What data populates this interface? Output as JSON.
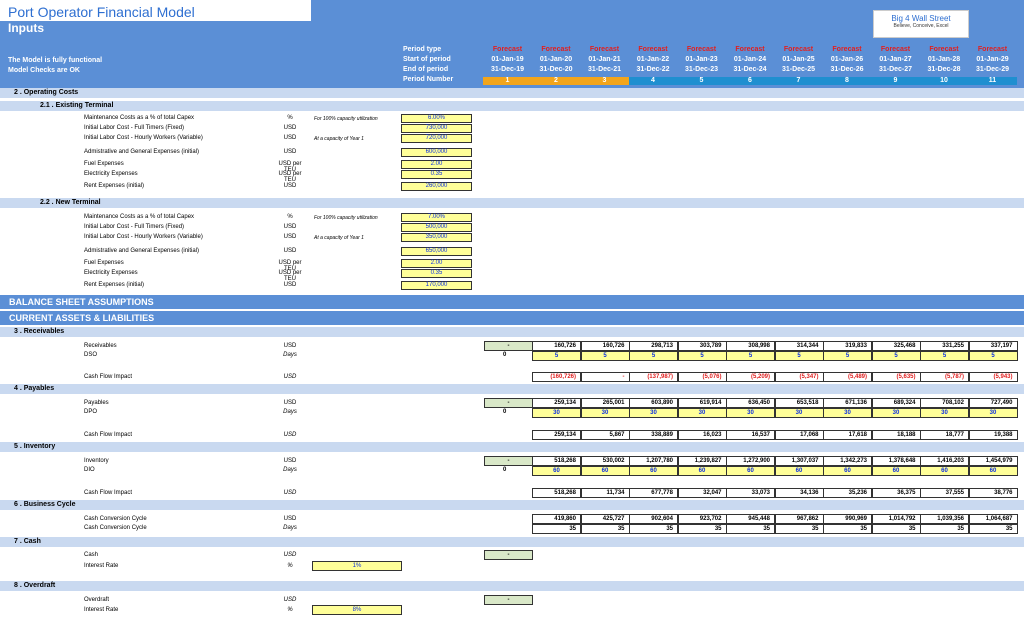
{
  "title": "Port Operator Financial Model",
  "subtitle": "Inputs",
  "logo": {
    "line1": "Big 4 Wall Street",
    "line2": "Believe, Conceive, Excel"
  },
  "status": [
    "The Model is fully functional",
    "Model Checks are OK"
  ],
  "period_labels": [
    "Period type",
    "Start of period",
    "End of period",
    "Period Number"
  ],
  "periods": [
    {
      "type": "Forecast",
      "start": "01-Jan-19",
      "end": "31-Dec-19",
      "num": "1"
    },
    {
      "type": "Forecast",
      "start": "01-Jan-20",
      "end": "31-Dec-20",
      "num": "2"
    },
    {
      "type": "Forecast",
      "start": "01-Jan-21",
      "end": "31-Dec-21",
      "num": "3"
    },
    {
      "type": "Forecast",
      "start": "01-Jan-22",
      "end": "31-Dec-22",
      "num": "4"
    },
    {
      "type": "Forecast",
      "start": "01-Jan-23",
      "end": "31-Dec-23",
      "num": "5"
    },
    {
      "type": "Forecast",
      "start": "01-Jan-24",
      "end": "31-Dec-24",
      "num": "6"
    },
    {
      "type": "Forecast",
      "start": "01-Jan-25",
      "end": "31-Dec-25",
      "num": "7"
    },
    {
      "type": "Forecast",
      "start": "01-Jan-26",
      "end": "31-Dec-26",
      "num": "8"
    },
    {
      "type": "Forecast",
      "start": "01-Jan-27",
      "end": "31-Dec-27",
      "num": "9"
    },
    {
      "type": "Forecast",
      "start": "01-Jan-28",
      "end": "31-Dec-28",
      "num": "10"
    },
    {
      "type": "Forecast",
      "start": "01-Jan-29",
      "end": "31-Dec-29",
      "num": "11"
    }
  ],
  "sec_operating": "2 . Operating Costs",
  "sub_existing": "2.1 . Existing Terminal",
  "sub_new": "2.2 . New Terminal",
  "cost_labels": [
    "Maintenance Costs as a % of total Capex",
    "Initial Labor Cost - Full Timers (Fixed)",
    "Initial Labor Cost - Hourly Workers (Variable)",
    "Admistrative and General Expenses (initial)",
    "Fuel Expenses",
    "Electricity Expenses",
    "Rent Expenses (initial)"
  ],
  "cost_units": [
    "%",
    "USD",
    "USD",
    "USD",
    "USD per TEU",
    "USD per TEU",
    "USD"
  ],
  "note_capacity": "For 100% capacity utilization",
  "note_year1": "At a capacity of Year 1",
  "existing_values": [
    "6.00%",
    "730,000",
    "720,000",
    "600,000",
    "2.00",
    "0.35",
    "260,000"
  ],
  "new_values": [
    "7.00%",
    "500,000",
    "350,000",
    "650,000",
    "2.00",
    "0.35",
    "170,000"
  ],
  "band_balance": "BALANCE SHEET ASSUMPTIONS",
  "band_current": "CURRENT ASSETS & LIABILITIES",
  "sec_receivables": "3 . Receivables",
  "sec_payables": "4 . Payables",
  "sec_inventory": "5 . Inventory",
  "sec_business": "6 . Business Cycle",
  "sec_cash": "7 . Cash",
  "sec_overdraft": "8 . Overdraft",
  "lbl": {
    "receivables": "Receivables",
    "dso": "DSO",
    "cfi": "Cash Flow Impact",
    "payables": "Payables",
    "dpo": "DPO",
    "inventory": "Inventory",
    "dio": "DIO",
    "ccc": "Cash Conversion Cycle",
    "cash": "Cash",
    "interest": "Interest Rate",
    "overdraft": "Overdraft",
    "usd": "USD",
    "days": "Days",
    "pct": "%"
  },
  "dash": "-",
  "zero": "0",
  "receivables": [
    "160,726",
    "160,726",
    "298,713",
    "303,789",
    "308,998",
    "314,344",
    "319,833",
    "325,468",
    "331,255",
    "337,197"
  ],
  "dso": [
    "5",
    "5",
    "5",
    "5",
    "5",
    "5",
    "5",
    "5",
    "5",
    "5"
  ],
  "rec_cfi": [
    "(160,726)",
    "-",
    "(137,987)",
    "(5,076)",
    "(5,209)",
    "(5,347)",
    "(5,489)",
    "(5,635)",
    "(5,787)",
    "(5,943)"
  ],
  "payables": [
    "259,134",
    "265,001",
    "603,890",
    "619,914",
    "636,450",
    "653,518",
    "671,136",
    "689,324",
    "708,102",
    "727,490"
  ],
  "dpo": [
    "30",
    "30",
    "30",
    "30",
    "30",
    "30",
    "30",
    "30",
    "30",
    "30"
  ],
  "pay_cfi": [
    "259,134",
    "5,867",
    "338,889",
    "16,023",
    "16,537",
    "17,068",
    "17,618",
    "18,188",
    "18,777",
    "19,388"
  ],
  "inventory": [
    "518,268",
    "530,002",
    "1,207,780",
    "1,239,827",
    "1,272,900",
    "1,307,037",
    "1,342,273",
    "1,378,648",
    "1,416,203",
    "1,454,979"
  ],
  "dio": [
    "60",
    "60",
    "60",
    "60",
    "60",
    "60",
    "60",
    "60",
    "60",
    "60"
  ],
  "inv_cfi": [
    "518,268",
    "11,734",
    "677,778",
    "32,047",
    "33,073",
    "34,136",
    "35,236",
    "36,375",
    "37,555",
    "38,776"
  ],
  "ccc_usd": [
    "419,860",
    "425,727",
    "902,604",
    "923,702",
    "945,448",
    "967,862",
    "990,969",
    "1,014,792",
    "1,039,356",
    "1,064,687"
  ],
  "ccc_days": [
    "35",
    "35",
    "35",
    "35",
    "35",
    "35",
    "35",
    "35",
    "35",
    "35"
  ],
  "cash_rate": "1%",
  "overdraft_rate": "8%"
}
